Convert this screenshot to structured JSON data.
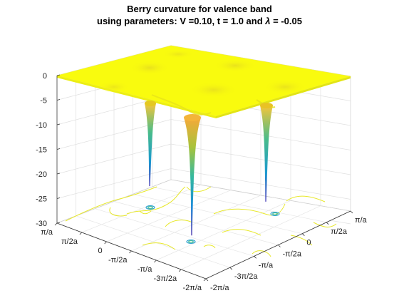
{
  "chart_data": {
    "type": "surface",
    "title_line1": "Berry curvature for valence band",
    "title_line2_prefix": "using parameters: V =0.10, t = 1.0 and ",
    "title_line2_symbol": "λ",
    "title_line2_suffix": " = -0.05",
    "zlim": [
      -30,
      0
    ],
    "z_ticks": [
      "0",
      "-5",
      "-10",
      "-15",
      "-20",
      "-25",
      "-30"
    ],
    "x_ticks": [
      "-2π/a",
      "-3π/2a",
      "-π/a",
      "-π/2a",
      "0",
      "π/2a",
      "π/a"
    ],
    "y_ticks": [
      "-2π/a",
      "-3π/2a",
      "-π/a",
      "-π/2a",
      "0",
      "π/2a",
      "π/a"
    ],
    "grid": true,
    "colormap": "parula",
    "colors": {
      "surface_top": "#f9fb0e",
      "cyan": "#33b7a0",
      "blue": "#3e26a8",
      "orange": "#f5b73a"
    },
    "contour_color": "#e8e82a",
    "surface_level": 0,
    "wells": [
      {
        "name": "left",
        "depth": -20.5
      },
      {
        "name": "center",
        "depth": -29.5
      },
      {
        "name": "right",
        "depth": -23.5
      }
    ]
  }
}
